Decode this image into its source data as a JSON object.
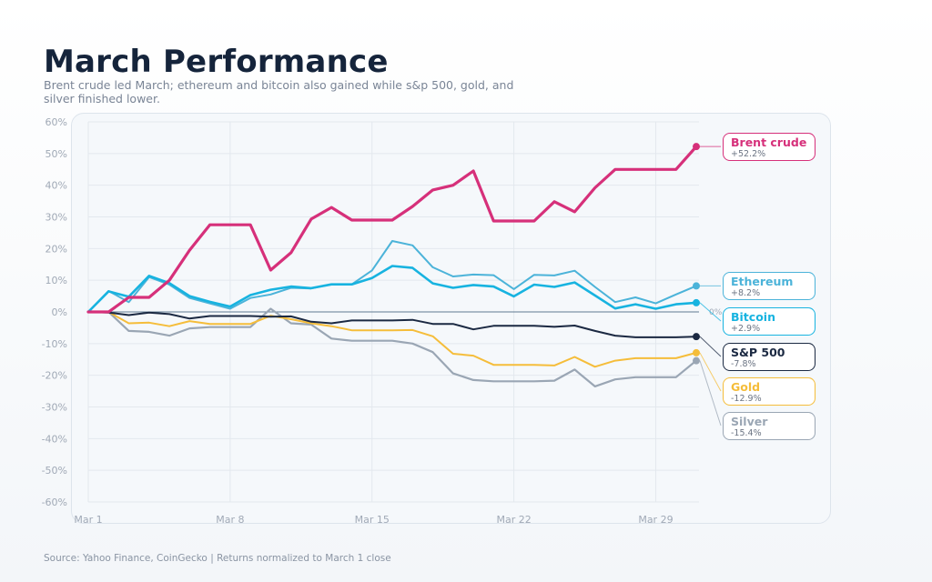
{
  "header": {
    "title": "March Performance",
    "subtitle": "Brent crude led March; ethereum and bitcoin also gained while s&p 500, gold, and silver finished lower."
  },
  "footer": "Source: Yahoo Finance, CoinGecko | Returns normalized to March 1 close",
  "chart_data": {
    "type": "line",
    "title": "March Performance",
    "xlabel": "",
    "ylabel": "",
    "x": [
      1,
      2,
      3,
      4,
      5,
      6,
      7,
      8,
      9,
      10,
      11,
      12,
      13,
      14,
      15,
      16,
      17,
      18,
      19,
      20,
      21,
      22,
      23,
      24,
      25,
      26,
      27,
      28,
      29,
      30,
      31
    ],
    "x_ticks": [
      {
        "day": 1,
        "label": "Mar 1"
      },
      {
        "day": 8,
        "label": "Mar 8"
      },
      {
        "day": 15,
        "label": "Mar 15"
      },
      {
        "day": 22,
        "label": "Mar 22"
      },
      {
        "day": 29,
        "label": "Mar 29"
      }
    ],
    "y_ticks": [
      "60%",
      "50%",
      "40%",
      "30%",
      "20%",
      "10%",
      "0%",
      "-10%",
      "-20%",
      "-30%",
      "-40%",
      "-50%",
      "-60%"
    ],
    "ylim": [
      -60,
      60
    ],
    "grid": true,
    "zero_line_label": "0%",
    "legend": "right (direct labels at line ends)",
    "series": [
      {
        "name": "Brent crude",
        "final_label": "+52.2%",
        "color": "#d6307a",
        "width": 3.2,
        "values": [
          0,
          0,
          4.6,
          4.6,
          10,
          19.5,
          27.5,
          27.5,
          27.5,
          13.2,
          18.7,
          29.3,
          33,
          29,
          29,
          29,
          33.3,
          38.5,
          40,
          44.5,
          28.7,
          28.7,
          28.7,
          34.8,
          31.6,
          39.2,
          45,
          45,
          45,
          45,
          52.2
        ]
      },
      {
        "name": "Ethereum",
        "final_label": "+8.2%",
        "color": "#4bb3d9",
        "width": 2,
        "values": [
          0,
          6.6,
          3.1,
          11.0,
          8.6,
          4.4,
          2.7,
          1.0,
          4.4,
          5.5,
          7.6,
          7.4,
          8.7,
          8.7,
          13.1,
          22.4,
          21,
          14.1,
          11.2,
          11.8,
          11.6,
          7.2,
          11.7,
          11.5,
          13,
          7.9,
          3.1,
          4.6,
          2.7,
          5.5,
          8.2
        ]
      },
      {
        "name": "Bitcoin",
        "final_label": "+2.9%",
        "color": "#17b3e0",
        "width": 2.6,
        "values": [
          0,
          6.5,
          4.8,
          11.4,
          9.1,
          5.0,
          3.2,
          1.7,
          5.3,
          7.0,
          8.0,
          7.5,
          8.7,
          8.7,
          10.7,
          14.5,
          13.9,
          9.0,
          7.6,
          8.5,
          8.0,
          4.9,
          8.6,
          7.9,
          9.3,
          5.2,
          1.1,
          2.4,
          1.0,
          2.4,
          2.9
        ]
      },
      {
        "name": "S&P 500",
        "final_label": "-7.8%",
        "color": "#1b2942",
        "width": 2,
        "values": [
          0,
          -0.2,
          -1.0,
          -0.2,
          -0.7,
          -2.1,
          -1.3,
          -1.3,
          -1.3,
          -1.5,
          -1.4,
          -3.1,
          -3.6,
          -2.7,
          -2.7,
          -2.7,
          -2.5,
          -3.8,
          -3.8,
          -5.5,
          -4.4,
          -4.4,
          -4.4,
          -4.7,
          -4.3,
          -6.0,
          -7.5,
          -8.0,
          -8.0,
          -8.0,
          -7.8
        ]
      },
      {
        "name": "Gold",
        "final_label": "-12.9%",
        "color": "#f5bd3a",
        "width": 2,
        "values": [
          0,
          0,
          -3.6,
          -3.4,
          -4.5,
          -2.9,
          -3.8,
          -3.8,
          -3.8,
          -1.2,
          -2.3,
          -3.6,
          -4.5,
          -5.8,
          -5.8,
          -5.8,
          -5.7,
          -7.7,
          -13.2,
          -13.8,
          -16.7,
          -16.7,
          -16.7,
          -16.9,
          -14.2,
          -17.3,
          -15.4,
          -14.6,
          -14.6,
          -14.6,
          -12.9
        ]
      },
      {
        "name": "Silver",
        "final_label": "-15.4%",
        "color": "#9aa6b4",
        "width": 2.2,
        "values": [
          0,
          0,
          -6.0,
          -6.3,
          -7.5,
          -5.2,
          -4.8,
          -4.8,
          -4.8,
          1.0,
          -3.6,
          -4.0,
          -8.4,
          -9.1,
          -9.1,
          -9.1,
          -10,
          -12.7,
          -19.4,
          -21.5,
          -21.9,
          -21.9,
          -21.9,
          -21.7,
          -18.2,
          -23.5,
          -21.3,
          -20.6,
          -20.6,
          -20.6,
          -15.4
        ]
      }
    ]
  }
}
